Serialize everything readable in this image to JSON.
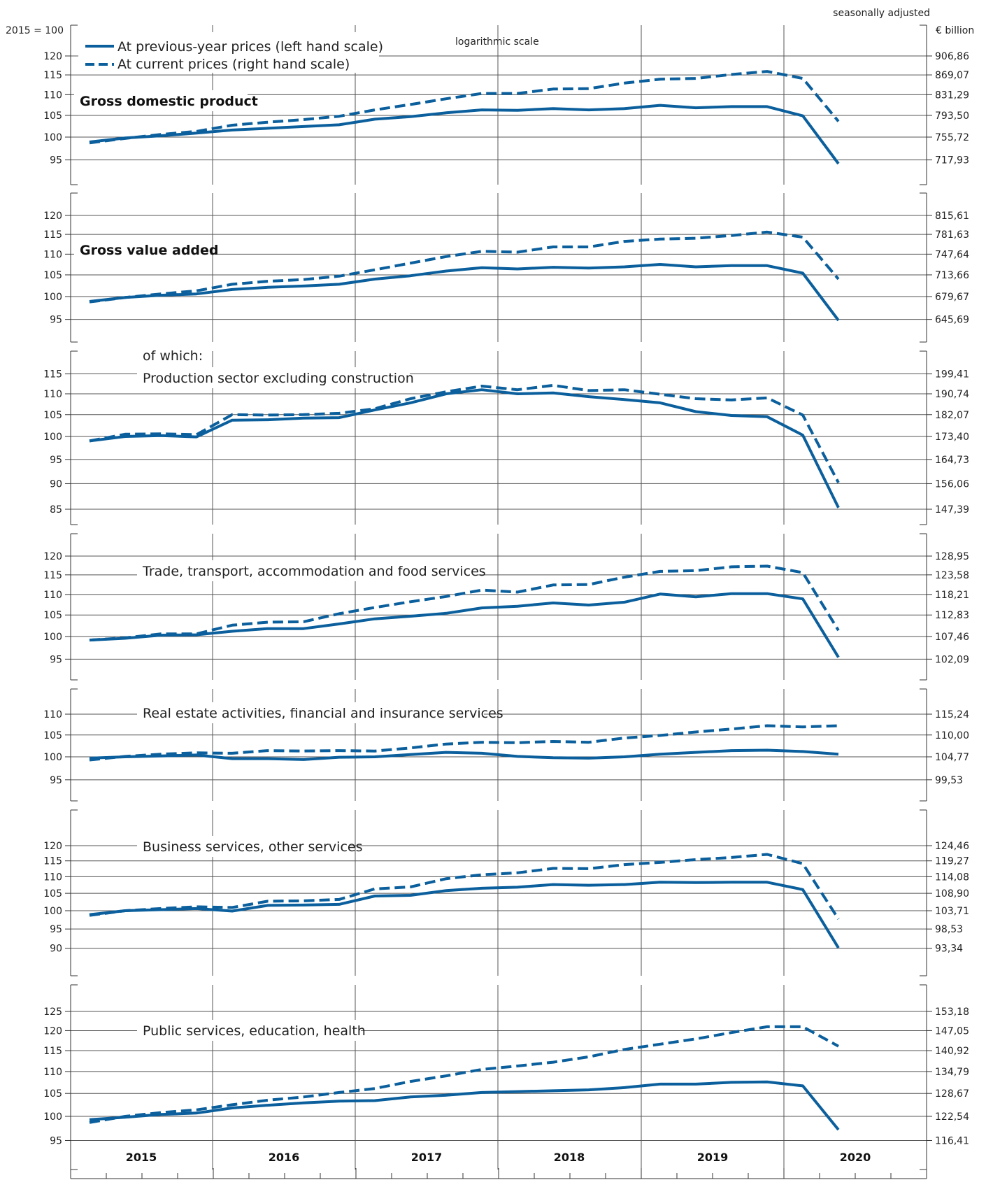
{
  "header": {
    "left_unit": "2015 = 100",
    "right_unit": "€ billion",
    "seasonal_note": "seasonally adjusted",
    "scale_note": "logarithmic scale"
  },
  "legend": {
    "solid": "At previous-year prices (left hand scale)",
    "dashed": "At current prices (right hand scale)"
  },
  "colors": {
    "line": "#0a5f9c",
    "frame": "#333333",
    "grid": "#555555"
  },
  "years": [
    "2015",
    "2016",
    "2017",
    "2018",
    "2019",
    "2020"
  ],
  "chart_data": [
    {
      "type": "line",
      "title": "Gross domestic product",
      "title_bold": true,
      "x": [
        "2015 Q1",
        "2015 Q2",
        "2015 Q3",
        "2015 Q4",
        "2016 Q1",
        "2016 Q2",
        "2016 Q3",
        "2016 Q4",
        "2017 Q1",
        "2017 Q2",
        "2017 Q3",
        "2017 Q4",
        "2018 Q1",
        "2018 Q2",
        "2018 Q3",
        "2018 Q4",
        "2019 Q1",
        "2019 Q2",
        "2019 Q3",
        "2019 Q4",
        "2020 Q1",
        "2020 Q2"
      ],
      "y_left_ticks": [
        95,
        100,
        105,
        110,
        115,
        120
      ],
      "y_right_ticks": [
        "717,93",
        "755,72",
        "793,50",
        "831,29",
        "869,07",
        "906,86"
      ],
      "ylim": [
        89,
        125
      ],
      "series": [
        {
          "name": "At previous-year prices (left hand scale)",
          "style": "solid",
          "values": [
            98.9,
            99.8,
            100.3,
            100.9,
            101.6,
            102.0,
            102.4,
            102.8,
            104.1,
            104.7,
            105.6,
            106.3,
            106.2,
            106.6,
            106.3,
            106.6,
            107.4,
            106.8,
            107.1,
            107.1,
            104.9,
            94.2
          ]
        },
        {
          "name": "At current prices (right hand scale)",
          "style": "dashed",
          "values": [
            98.7,
            99.7,
            100.6,
            101.3,
            102.7,
            103.4,
            104.0,
            104.8,
            106.3,
            107.6,
            109.0,
            110.3,
            110.3,
            111.4,
            111.5,
            112.9,
            113.9,
            114.1,
            115.1,
            115.9,
            114.1,
            103.6
          ]
        }
      ]
    },
    {
      "type": "line",
      "title": "Gross value added",
      "title_bold": true,
      "x": [
        "2015 Q1",
        "2015 Q2",
        "2015 Q3",
        "2015 Q4",
        "2016 Q1",
        "2016 Q2",
        "2016 Q3",
        "2016 Q4",
        "2017 Q1",
        "2017 Q2",
        "2017 Q3",
        "2017 Q4",
        "2018 Q1",
        "2018 Q2",
        "2018 Q3",
        "2018 Q4",
        "2019 Q1",
        "2019 Q2",
        "2019 Q3",
        "2019 Q4",
        "2020 Q1",
        "2020 Q2"
      ],
      "y_left_ticks": [
        95,
        100,
        105,
        110,
        115,
        120
      ],
      "y_right_ticks": [
        "645,69",
        "679,67",
        "713,66",
        "747,64",
        "781,63",
        "815,61"
      ],
      "ylim": [
        89,
        125
      ],
      "series": [
        {
          "name": "At previous-year prices (left hand scale)",
          "style": "solid",
          "values": [
            98.9,
            99.8,
            100.3,
            100.6,
            101.6,
            102.1,
            102.4,
            102.8,
            104.0,
            104.8,
            105.9,
            106.7,
            106.4,
            106.8,
            106.6,
            106.9,
            107.5,
            106.9,
            107.2,
            107.2,
            105.4,
            94.8
          ]
        },
        {
          "name": "At current prices (right hand scale)",
          "style": "dashed",
          "values": [
            98.8,
            99.8,
            100.6,
            101.3,
            102.8,
            103.5,
            103.9,
            104.7,
            106.2,
            107.8,
            109.4,
            110.7,
            110.5,
            111.8,
            111.8,
            113.2,
            113.8,
            114.0,
            114.7,
            115.6,
            114.3,
            104.0
          ]
        }
      ]
    },
    {
      "type": "line",
      "title": "Production sector excluding construction",
      "title_prefix": "of which:",
      "title_bold": false,
      "x": [
        "2015 Q1",
        "2015 Q2",
        "2015 Q3",
        "2015 Q4",
        "2016 Q1",
        "2016 Q2",
        "2016 Q3",
        "2016 Q4",
        "2017 Q1",
        "2017 Q2",
        "2017 Q3",
        "2017 Q4",
        "2018 Q1",
        "2018 Q2",
        "2018 Q3",
        "2018 Q4",
        "2019 Q1",
        "2019 Q2",
        "2019 Q3",
        "2019 Q4",
        "2020 Q1",
        "2020 Q2"
      ],
      "y_left_ticks": [
        85,
        90,
        95,
        100,
        105,
        110,
        115
      ],
      "y_right_ticks": [
        "147,39",
        "156,06",
        "164,73",
        "173,40",
        "182,07",
        "190,74",
        "199,41"
      ],
      "ylim": [
        80,
        120
      ],
      "series": [
        {
          "name": "At previous-year prices (left hand scale)",
          "style": "solid",
          "values": [
            99.0,
            100.0,
            100.2,
            99.9,
            103.7,
            103.8,
            104.2,
            104.3,
            106.1,
            107.8,
            110.0,
            111.0,
            110.0,
            110.2,
            109.3,
            108.6,
            107.8,
            105.7,
            104.8,
            104.5,
            100.3,
            85.3
          ]
        },
        {
          "name": "At current prices (right hand scale)",
          "style": "dashed",
          "values": [
            99.0,
            100.5,
            100.6,
            100.4,
            105.0,
            104.9,
            105.0,
            105.3,
            106.4,
            108.8,
            110.5,
            111.9,
            111.0,
            112.1,
            110.8,
            111.0,
            109.9,
            108.8,
            108.5,
            109.0,
            104.9,
            90.2
          ]
        }
      ]
    },
    {
      "type": "line",
      "title": "Trade, transport, accommodation and food services",
      "title_bold": false,
      "x": [
        "2015 Q1",
        "2015 Q2",
        "2015 Q3",
        "2015 Q4",
        "2016 Q1",
        "2016 Q2",
        "2016 Q3",
        "2016 Q4",
        "2017 Q1",
        "2017 Q2",
        "2017 Q3",
        "2017 Q4",
        "2018 Q1",
        "2018 Q2",
        "2018 Q3",
        "2018 Q4",
        "2019 Q1",
        "2019 Q2",
        "2019 Q3",
        "2019 Q4",
        "2020 Q1",
        "2020 Q2"
      ],
      "y_left_ticks": [
        95,
        100,
        105,
        110,
        115,
        120
      ],
      "y_right_ticks": [
        "102,09",
        "107,46",
        "112,83",
        "118,21",
        "123,58",
        "128,95"
      ],
      "ylim": [
        89,
        125
      ],
      "series": [
        {
          "name": "At previous-year prices (left hand scale)",
          "style": "solid",
          "values": [
            99.2,
            99.6,
            100.3,
            100.4,
            101.2,
            101.8,
            101.8,
            102.9,
            104.1,
            104.7,
            105.4,
            106.7,
            107.1,
            107.9,
            107.4,
            108.1,
            110.1,
            109.4,
            110.2,
            110.2,
            108.9,
            95.4
          ]
        },
        {
          "name": "At current prices (right hand scale)",
          "style": "dashed",
          "values": [
            99.2,
            99.7,
            100.6,
            100.6,
            102.6,
            103.3,
            103.4,
            105.3,
            106.8,
            108.2,
            109.5,
            111.1,
            110.6,
            112.4,
            112.5,
            114.4,
            115.9,
            116.1,
            117.1,
            117.3,
            115.6,
            101.4
          ]
        }
      ]
    },
    {
      "type": "line",
      "title": "Real estate activities, financial and insurance services",
      "title_bold": false,
      "x": [
        "2015 Q1",
        "2015 Q2",
        "2015 Q3",
        "2015 Q4",
        "2016 Q1",
        "2016 Q2",
        "2016 Q3",
        "2016 Q4",
        "2017 Q1",
        "2017 Q2",
        "2017 Q3",
        "2017 Q4",
        "2018 Q1",
        "2018 Q2",
        "2018 Q3",
        "2018 Q4",
        "2019 Q1",
        "2019 Q2",
        "2019 Q3",
        "2019 Q4",
        "2020 Q1",
        "2020 Q2"
      ],
      "y_left_ticks": [
        95,
        100,
        105,
        110
      ],
      "y_right_ticks": [
        "99,53",
        "104,77",
        "110,00",
        "115,24"
      ],
      "ylim": [
        89,
        115
      ],
      "series": [
        {
          "name": "At previous-year prices (left hand scale)",
          "style": "solid",
          "values": [
            99.7,
            100.0,
            100.2,
            100.4,
            99.6,
            99.6,
            99.4,
            99.9,
            100.0,
            100.5,
            101.0,
            100.8,
            100.1,
            99.8,
            99.7,
            100.0,
            100.6,
            101.0,
            101.4,
            101.5,
            101.2,
            100.6
          ]
        },
        {
          "name": "At current prices (right hand scale)",
          "style": "dashed",
          "values": [
            99.3,
            100.1,
            100.6,
            100.9,
            100.8,
            101.4,
            101.3,
            101.4,
            101.3,
            102.0,
            102.9,
            103.3,
            103.2,
            103.5,
            103.3,
            104.3,
            104.9,
            105.7,
            106.4,
            107.2,
            106.9,
            107.2
          ]
        }
      ]
    },
    {
      "type": "line",
      "title": "Business services, other services",
      "title_bold": false,
      "x": [
        "2015 Q1",
        "2015 Q2",
        "2015 Q3",
        "2015 Q4",
        "2016 Q1",
        "2016 Q2",
        "2016 Q3",
        "2016 Q4",
        "2017 Q1",
        "2017 Q2",
        "2017 Q3",
        "2017 Q4",
        "2018 Q1",
        "2018 Q2",
        "2018 Q3",
        "2018 Q4",
        "2019 Q1",
        "2019 Q2",
        "2019 Q3",
        "2019 Q4",
        "2020 Q1",
        "2020 Q2"
      ],
      "y_left_ticks": [
        90,
        95,
        100,
        105,
        110,
        115,
        120
      ],
      "y_right_ticks": [
        "93,34",
        "98,53",
        "103,71",
        "108,90",
        "114,08",
        "119,27",
        "124,46"
      ],
      "ylim": [
        85,
        125
      ],
      "series": [
        {
          "name": "At previous-year prices (left hand scale)",
          "style": "solid",
          "values": [
            98.9,
            100.0,
            100.3,
            100.6,
            99.9,
            101.5,
            101.6,
            101.8,
            104.2,
            104.4,
            105.8,
            106.5,
            106.8,
            107.6,
            107.4,
            107.6,
            108.3,
            108.2,
            108.3,
            108.3,
            106.1,
            90.1
          ]
        },
        {
          "name": "At current prices (right hand scale)",
          "style": "dashed",
          "values": [
            98.7,
            100.0,
            100.6,
            101.1,
            100.9,
            102.7,
            102.8,
            103.2,
            106.3,
            106.9,
            109.4,
            110.6,
            111.2,
            112.6,
            112.5,
            113.8,
            114.5,
            115.4,
            116.1,
            117.1,
            114.1,
            97.7
          ]
        }
      ]
    },
    {
      "type": "line",
      "title": "Public services, education, health",
      "title_bold": false,
      "x": [
        "2015 Q1",
        "2015 Q2",
        "2015 Q3",
        "2015 Q4",
        "2016 Q1",
        "2016 Q2",
        "2016 Q3",
        "2016 Q4",
        "2017 Q1",
        "2017 Q2",
        "2017 Q3",
        "2017 Q4",
        "2018 Q1",
        "2018 Q2",
        "2018 Q3",
        "2018 Q4",
        "2019 Q1",
        "2019 Q2",
        "2019 Q3",
        "2019 Q4",
        "2020 Q1",
        "2020 Q2"
      ],
      "y_left_ticks": [
        95,
        100,
        105,
        110,
        115,
        120,
        125
      ],
      "y_right_ticks": [
        "116,41",
        "122,54",
        "128,67",
        "134,79",
        "140,92",
        "147,05",
        "153,18"
      ],
      "ylim": [
        89,
        130
      ],
      "series": [
        {
          "name": "At previous-year prices (left hand scale)",
          "style": "solid",
          "values": [
            99.3,
            99.8,
            100.4,
            100.7,
            101.8,
            102.4,
            102.9,
            103.3,
            103.4,
            104.2,
            104.6,
            105.2,
            105.4,
            105.6,
            105.8,
            106.3,
            107.1,
            107.1,
            107.5,
            107.6,
            106.7,
            97.2
          ]
        },
        {
          "name": "At current prices (right hand scale)",
          "style": "dashed",
          "values": [
            98.7,
            100.0,
            100.8,
            101.4,
            102.5,
            103.5,
            104.2,
            105.2,
            106.1,
            107.7,
            109.0,
            110.5,
            111.3,
            112.2,
            113.5,
            115.3,
            116.6,
            117.9,
            119.5,
            121.0,
            121.0,
            116.1
          ]
        }
      ]
    }
  ]
}
